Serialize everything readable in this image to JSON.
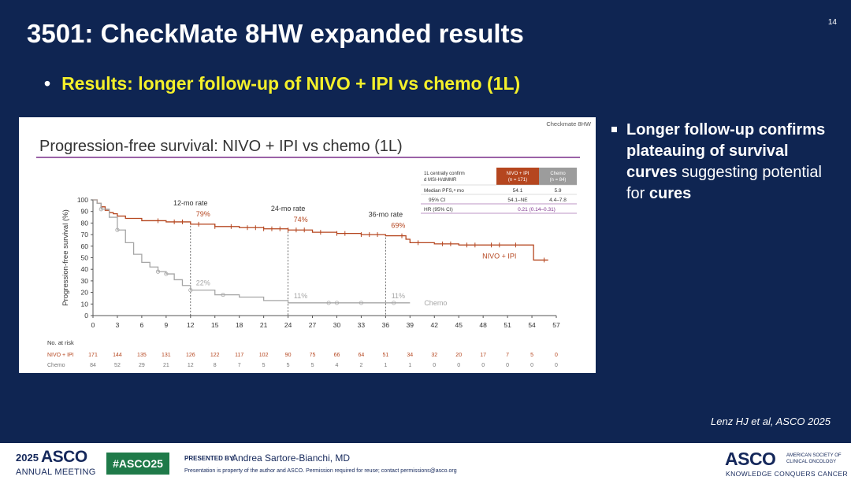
{
  "slide": {
    "title": "3501: CheckMate 8HW expanded results",
    "page_number": "14",
    "bullet": "Results: longer follow-up of NIVO + IPI vs chemo (1L)",
    "side_bullet": {
      "part1": "Longer follow-up confirms plateauing of survival curves",
      "part2": " suggesting potential for ",
      "part3": "cures"
    },
    "citation": "Lenz HJ et al, ASCO 2025"
  },
  "footer": {
    "year": "2025",
    "asco": "ASCO",
    "meeting": "ANNUAL MEETING",
    "hashtag": "#ASCO25",
    "presented_by_label": "PRESENTED BY:",
    "presenter": "Andrea Sartore-Bianchi, MD",
    "note": "Presentation is property of the author and ASCO. Permission required for reuse; contact permissions@asco.org",
    "logo": "ASCO",
    "logo_sub": "AMERICAN SOCIETY OF CLINICAL ONCOLOGY",
    "tagline": "KNOWLEDGE CONQUERS CANCER"
  },
  "chart_data": {
    "type": "line",
    "source_label": "Checkmate 8HW",
    "title": "Progression-free survival: NIVO + IPI vs chemo (1L)",
    "ylabel": "Progression-free survival (%)",
    "xlim": [
      0,
      57
    ],
    "ylim": [
      0,
      100
    ],
    "x_ticks": [
      0,
      3,
      6,
      9,
      12,
      15,
      18,
      21,
      24,
      27,
      30,
      33,
      36,
      39,
      42,
      45,
      48,
      51,
      54,
      57
    ],
    "y_ticks": [
      0,
      10,
      20,
      30,
      40,
      50,
      60,
      70,
      80,
      90,
      100
    ],
    "colors": {
      "nivo_ipi": "#b5461f",
      "chemo": "#a6a6a6",
      "accent": "#7a2e8a",
      "dash": "#444444"
    },
    "series": [
      {
        "name": "NIVO + IPI",
        "color": "#b5461f",
        "x": [
          0,
          0.5,
          1,
          1.5,
          2,
          2.5,
          3,
          4,
          6,
          9,
          12,
          15,
          18,
          21,
          24,
          27,
          30,
          33,
          36,
          38.5,
          39,
          42,
          45,
          48,
          51,
          54,
          54.2,
          56
        ],
        "y": [
          100,
          97,
          94,
          91,
          89,
          88,
          86,
          84,
          82,
          81,
          79,
          77,
          76,
          75,
          74,
          72,
          71,
          70,
          69,
          66,
          63,
          62,
          61,
          61,
          61,
          61,
          48,
          48
        ],
        "censor_x": [
          8,
          10,
          11,
          13,
          15,
          17,
          19,
          20,
          21,
          22,
          23,
          24,
          25,
          26,
          28,
          30,
          31,
          33,
          34,
          35,
          38,
          40,
          43,
          44,
          46,
          47,
          49,
          50,
          52,
          55.5
        ]
      },
      {
        "name": "Chemo",
        "color": "#a6a6a6",
        "x": [
          0,
          0.5,
          1,
          2,
          3,
          4,
          5,
          6,
          7,
          8,
          9,
          10,
          11,
          12,
          15,
          18,
          21,
          24,
          27,
          30,
          33,
          36,
          39
        ],
        "y": [
          100,
          97,
          92,
          85,
          74,
          63,
          53,
          46,
          42,
          38,
          36,
          31,
          26,
          22,
          18,
          16,
          13,
          11,
          11,
          11,
          11,
          11,
          11
        ],
        "censor_x": [
          1,
          3,
          8,
          9,
          12,
          16,
          29,
          30,
          33,
          37
        ]
      }
    ],
    "landmarks": [
      {
        "x": 12,
        "label": "12-mo rate",
        "nivo_pct": "79%",
        "chemo_pct": "22%",
        "nivo_y": 79,
        "chemo_y": 22
      },
      {
        "x": 24,
        "label": "24-mo rate",
        "nivo_pct": "74%",
        "chemo_pct": "11%",
        "nivo_y": 74,
        "chemo_y": 11
      },
      {
        "x": 36,
        "label": "36-mo rate",
        "nivo_pct": "69%",
        "chemo_pct": "11%",
        "nivo_y": 69,
        "chemo_y": 11
      }
    ],
    "table": {
      "header": [
        "1L centrally confirmed MSI-H/dMMR",
        "NIVO + IPI (n = 171)",
        "Chemo (n = 84)"
      ],
      "rows": [
        [
          "Median PFS,ᵃ mo",
          "54.1",
          "5.9"
        ],
        [
          "95% CI",
          "54.1–NE",
          "4.4–7.8"
        ],
        [
          "HR (95% CI)",
          "0.21 (0.14–0.31)",
          ""
        ]
      ]
    },
    "at_risk": {
      "title": "No. at risk",
      "rows": [
        {
          "name": "NIVO + IPI",
          "values": [
            171,
            144,
            135,
            131,
            126,
            122,
            117,
            102,
            90,
            75,
            66,
            64,
            51,
            34,
            32,
            20,
            17,
            7,
            5,
            0
          ]
        },
        {
          "name": "Chemo",
          "values": [
            84,
            52,
            29,
            21,
            12,
            8,
            7,
            5,
            5,
            5,
            4,
            2,
            1,
            1,
            0,
            0,
            0,
            0,
            0,
            0
          ]
        }
      ]
    }
  }
}
